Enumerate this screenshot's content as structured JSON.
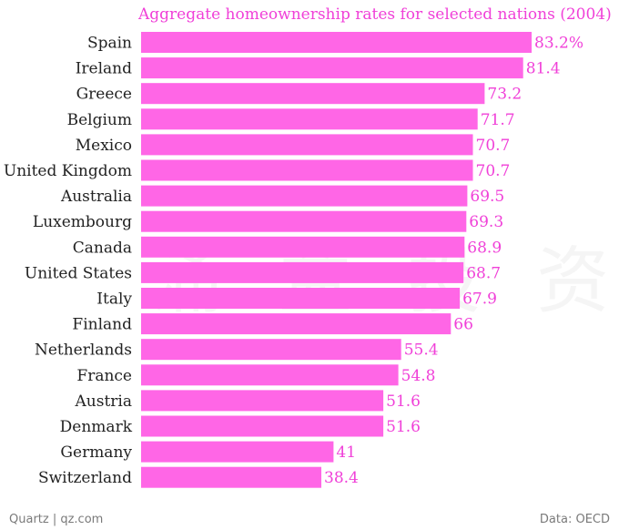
{
  "colors": {
    "bar": "#ff66e6",
    "title": "#f040d8",
    "value_label": "#f040d8"
  },
  "footer": {
    "source_left": "Quartz | qz.com",
    "source_right": "Data: OECD"
  },
  "watermark": "涌 益 投 资",
  "chart_data": {
    "type": "bar",
    "orientation": "horizontal",
    "title": "Aggregate homeownership rates for selected nations (2004)",
    "xlabel": "",
    "ylabel": "",
    "xlim": [
      0,
      83.2
    ],
    "grid": false,
    "categories": [
      "Spain",
      "Ireland",
      "Greece",
      "Belgium",
      "Mexico",
      "United Kingdom",
      "Australia",
      "Luxembourg",
      "Canada",
      "United States",
      "Italy",
      "Finland",
      "Netherlands",
      "France",
      "Austria",
      "Denmark",
      "Germany",
      "Switzerland"
    ],
    "values": [
      83.2,
      81.4,
      73.2,
      71.7,
      70.7,
      70.7,
      69.5,
      69.3,
      68.9,
      68.7,
      67.9,
      66,
      55.4,
      54.8,
      51.6,
      51.6,
      41,
      38.4
    ],
    "value_labels": [
      "83.2%",
      "81.4",
      "73.2",
      "71.7",
      "70.7",
      "70.7",
      "69.5",
      "69.3",
      "68.9",
      "68.7",
      "67.9",
      "66",
      "55.4",
      "54.8",
      "51.6",
      "51.6",
      "41",
      "38.4"
    ]
  }
}
